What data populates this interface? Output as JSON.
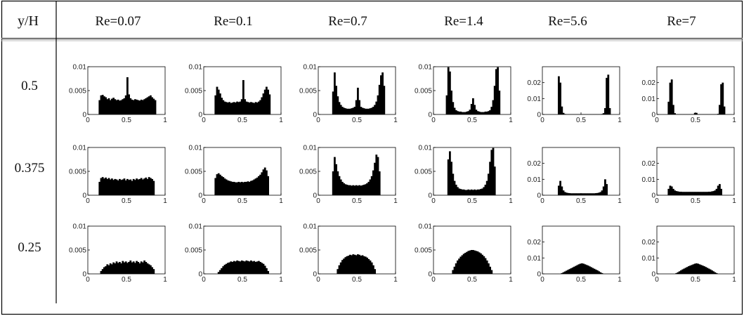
{
  "table": {
    "corner_label": "y/H",
    "columns": [
      "Re=0.07",
      "Re=0.1",
      "Re=0.7",
      "Re=1.4",
      "Re=5.6",
      "Re=7"
    ],
    "rows": [
      "0.5",
      "0.375",
      "0.25"
    ]
  },
  "chart_data": {
    "type": "bar",
    "description_of_grid": "3 rows (y/H) x 6 columns (Re) of histograms; x from 0 to 1",
    "x_ticks": [
      "0",
      "0.5",
      "1"
    ],
    "xlim": [
      0,
      1
    ],
    "y_ticks_small": [
      "0",
      "0.005",
      "0.01"
    ],
    "ylim_small": [
      0,
      0.01
    ],
    "y_ticks_large": [
      "0",
      "0.01",
      "0.02"
    ],
    "ylim_large": [
      0,
      0.03
    ],
    "bins": 50,
    "panels": [
      {
        "row": "0.5",
        "re": "Re=0.07",
        "scale": "small",
        "values": [
          0,
          0,
          0,
          0,
          0,
          0,
          0,
          0.003,
          0.004,
          0.0041,
          0.0038,
          0.0036,
          0.0032,
          0.0034,
          0.003,
          0.0033,
          0.0035,
          0.0032,
          0.003,
          0.0031,
          0.0029,
          0.003,
          0.0032,
          0.0034,
          0.004,
          0.0078,
          0.0042,
          0.0034,
          0.0031,
          0.003,
          0.0032,
          0.0031,
          0.003,
          0.0029,
          0.0031,
          0.003,
          0.0032,
          0.0034,
          0.0036,
          0.0038,
          0.004,
          0.0036,
          0.0033,
          0.003,
          0,
          0,
          0,
          0,
          0,
          0
        ]
      },
      {
        "row": "0.5",
        "re": "Re=0.1",
        "scale": "small",
        "values": [
          0,
          0,
          0,
          0,
          0,
          0,
          0,
          0.004,
          0.0058,
          0.0052,
          0.0044,
          0.0035,
          0.003,
          0.0027,
          0.0026,
          0.0025,
          0.0026,
          0.0024,
          0.0025,
          0.0026,
          0.0025,
          0.0027,
          0.0026,
          0.0027,
          0.0032,
          0.0072,
          0.0032,
          0.0027,
          0.0026,
          0.0025,
          0.0026,
          0.0025,
          0.0024,
          0.0026,
          0.0025,
          0.0027,
          0.003,
          0.0036,
          0.0044,
          0.0052,
          0.0058,
          0.0052,
          0.0042,
          0,
          0,
          0,
          0,
          0,
          0,
          0
        ]
      },
      {
        "row": "0.5",
        "re": "Re=0.7",
        "scale": "small",
        "values": [
          0,
          0,
          0,
          0,
          0,
          0,
          0,
          0,
          0,
          0.0048,
          0.0088,
          0.006,
          0.0038,
          0.0026,
          0.002,
          0.0016,
          0.0014,
          0.0013,
          0.0012,
          0.0012,
          0.0012,
          0.0013,
          0.0014,
          0.0016,
          0.003,
          0.0056,
          0.003,
          0.0016,
          0.0014,
          0.0013,
          0.0012,
          0.0012,
          0.0012,
          0.0013,
          0.0014,
          0.0016,
          0.002,
          0.0027,
          0.004,
          0.0062,
          0.0082,
          0.0088,
          0.006,
          0,
          0,
          0,
          0,
          0,
          0,
          0
        ]
      },
      {
        "row": "0.5",
        "re": "Re=1.4",
        "scale": "small",
        "values": [
          0,
          0,
          0,
          0,
          0,
          0,
          0,
          0,
          0.004,
          0.0099,
          0.009,
          0.005,
          0.0026,
          0.0014,
          0.0009,
          0.0007,
          0.0006,
          0.0006,
          0.0005,
          0.0005,
          0.0005,
          0.0006,
          0.0007,
          0.001,
          0.0022,
          0.0034,
          0.002,
          0.001,
          0.0007,
          0.0006,
          0.0005,
          0.0005,
          0.0005,
          0.0006,
          0.0006,
          0.0007,
          0.0009,
          0.0016,
          0.003,
          0.006,
          0.0095,
          0.0099,
          0.005,
          0,
          0,
          0,
          0,
          0,
          0,
          0
        ]
      },
      {
        "row": "0.5",
        "re": "Re=5.6",
        "scale": "large",
        "values": [
          0,
          0,
          0,
          0,
          0,
          0,
          0,
          0,
          0,
          0,
          0.024,
          0.02,
          0.005,
          0.001,
          0.0003,
          0.0002,
          0.0002,
          0.0002,
          0.0002,
          0.0002,
          0.0002,
          0.0002,
          0.0002,
          0.0002,
          0.0002,
          0.0002,
          0.0002,
          0.0002,
          0.0002,
          0.0002,
          0.0002,
          0.0002,
          0.0002,
          0.0002,
          0.0002,
          0.0002,
          0.0002,
          0.0002,
          0.0003,
          0.0008,
          0.004,
          0.023,
          0.025,
          0.004,
          0,
          0,
          0,
          0,
          0,
          0
        ]
      },
      {
        "row": "0.5",
        "re": "Re=7",
        "scale": "large",
        "values": [
          0,
          0,
          0,
          0,
          0,
          0,
          0,
          0.008,
          0.02,
          0.022,
          0.006,
          0.0008,
          0.0002,
          0.0002,
          0.0002,
          0.0002,
          0.0002,
          0.0002,
          0.0002,
          0.0002,
          0.0002,
          0.0002,
          0.0002,
          0.0002,
          0.001,
          0.001,
          0.0002,
          0.0002,
          0.0002,
          0.0002,
          0.0002,
          0.0002,
          0.0002,
          0.0002,
          0.0002,
          0.0002,
          0.0002,
          0.0002,
          0.0002,
          0.0004,
          0.006,
          0.019,
          0.02,
          0.005,
          0,
          0,
          0,
          0,
          0,
          0
        ]
      },
      {
        "row": "0.375",
        "re": "Re=0.07",
        "scale": "small",
        "values": [
          0,
          0,
          0,
          0,
          0,
          0,
          0,
          0.0028,
          0.0036,
          0.0038,
          0.0035,
          0.0037,
          0.0034,
          0.0036,
          0.0033,
          0.0035,
          0.0032,
          0.0034,
          0.0033,
          0.0031,
          0.0034,
          0.0032,
          0.0033,
          0.0035,
          0.0031,
          0.0034,
          0.0032,
          0.0033,
          0.003,
          0.0034,
          0.0032,
          0.0035,
          0.0033,
          0.0034,
          0.0036,
          0.0033,
          0.0035,
          0.0037,
          0.0034,
          0.0038,
          0.0036,
          0.0034,
          0.003,
          0,
          0,
          0,
          0,
          0,
          0,
          0
        ]
      },
      {
        "row": "0.375",
        "re": "Re=0.1",
        "scale": "small",
        "values": [
          0,
          0,
          0,
          0,
          0,
          0,
          0,
          0.0036,
          0.0044,
          0.0046,
          0.0043,
          0.004,
          0.0038,
          0.0035,
          0.0033,
          0.0031,
          0.003,
          0.0029,
          0.0028,
          0.0028,
          0.0027,
          0.0027,
          0.0028,
          0.0027,
          0.0028,
          0.0027,
          0.0028,
          0.0028,
          0.0029,
          0.0028,
          0.003,
          0.0031,
          0.0033,
          0.0035,
          0.0037,
          0.004,
          0.0043,
          0.0048,
          0.0054,
          0.0058,
          0.0052,
          0.004,
          0,
          0,
          0,
          0,
          0,
          0,
          0,
          0
        ]
      },
      {
        "row": "0.375",
        "re": "Re=0.7",
        "scale": "small",
        "values": [
          0,
          0,
          0,
          0,
          0,
          0,
          0,
          0,
          0,
          0.005,
          0.008,
          0.0065,
          0.005,
          0.004,
          0.0033,
          0.0028,
          0.0025,
          0.0023,
          0.0022,
          0.0021,
          0.0021,
          0.002,
          0.0021,
          0.002,
          0.0021,
          0.002,
          0.0021,
          0.002,
          0.0021,
          0.0022,
          0.0023,
          0.0025,
          0.0028,
          0.0033,
          0.004,
          0.0052,
          0.0068,
          0.0085,
          0.008,
          0.005,
          0,
          0,
          0,
          0,
          0,
          0,
          0,
          0,
          0,
          0
        ]
      },
      {
        "row": "0.375",
        "re": "Re=1.4",
        "scale": "small",
        "values": [
          0,
          0,
          0,
          0,
          0,
          0,
          0,
          0,
          0,
          0.0075,
          0.0092,
          0.007,
          0.0045,
          0.003,
          0.0022,
          0.0017,
          0.0014,
          0.0013,
          0.0012,
          0.0012,
          0.0011,
          0.0011,
          0.0012,
          0.0011,
          0.0012,
          0.0011,
          0.0012,
          0.0011,
          0.0012,
          0.0012,
          0.0013,
          0.0014,
          0.0017,
          0.0022,
          0.003,
          0.0045,
          0.007,
          0.0095,
          0.0099,
          0.006,
          0,
          0,
          0,
          0,
          0,
          0,
          0,
          0,
          0,
          0
        ]
      },
      {
        "row": "0.375",
        "re": "Re=5.6",
        "scale": "large",
        "values": [
          0,
          0,
          0,
          0,
          0,
          0,
          0,
          0,
          0,
          0,
          0.006,
          0.009,
          0.0055,
          0.003,
          0.002,
          0.0016,
          0.0014,
          0.0013,
          0.0012,
          0.0012,
          0.0012,
          0.0012,
          0.0012,
          0.0012,
          0.0012,
          0.0012,
          0.0012,
          0.0012,
          0.0012,
          0.0012,
          0.0012,
          0.0012,
          0.0012,
          0.0012,
          0.0013,
          0.0014,
          0.0016,
          0.002,
          0.003,
          0.0055,
          0.01,
          0.007,
          0,
          0,
          0,
          0,
          0,
          0,
          0,
          0
        ]
      },
      {
        "row": "0.375",
        "re": "Re=7",
        "scale": "large",
        "values": [
          0,
          0,
          0,
          0,
          0,
          0,
          0,
          0.004,
          0.006,
          0.0055,
          0.004,
          0.003,
          0.0026,
          0.0024,
          0.0022,
          0.0022,
          0.0021,
          0.0021,
          0.0021,
          0.0021,
          0.0021,
          0.0021,
          0.0021,
          0.0021,
          0.0021,
          0.0021,
          0.0021,
          0.0021,
          0.0021,
          0.0021,
          0.0021,
          0.0021,
          0.0021,
          0.0022,
          0.0022,
          0.0024,
          0.0026,
          0.003,
          0.004,
          0.006,
          0.007,
          0.004,
          0,
          0,
          0,
          0,
          0,
          0,
          0,
          0
        ]
      },
      {
        "row": "0.25",
        "re": "Re=0.07",
        "scale": "small",
        "values": [
          0,
          0,
          0,
          0,
          0,
          0,
          0,
          0,
          0.0006,
          0.001,
          0.0014,
          0.0016,
          0.002,
          0.0018,
          0.0022,
          0.002,
          0.0024,
          0.0022,
          0.0026,
          0.0023,
          0.0025,
          0.0022,
          0.0027,
          0.0024,
          0.0026,
          0.0023,
          0.0025,
          0.0028,
          0.0024,
          0.0026,
          0.0023,
          0.0027,
          0.0025,
          0.0022,
          0.0026,
          0.0024,
          0.0028,
          0.0025,
          0.0022,
          0.002,
          0.0018,
          0.0014,
          0.001,
          0,
          0,
          0,
          0,
          0,
          0,
          0
        ]
      },
      {
        "row": "0.25",
        "re": "Re=0.1",
        "scale": "small",
        "values": [
          0,
          0,
          0,
          0,
          0,
          0,
          0,
          0,
          0,
          0.0004,
          0.0008,
          0.0012,
          0.0016,
          0.0019,
          0.0021,
          0.0023,
          0.0024,
          0.0026,
          0.0025,
          0.0027,
          0.0026,
          0.0028,
          0.0027,
          0.0026,
          0.0028,
          0.0027,
          0.0026,
          0.0028,
          0.0027,
          0.0026,
          0.0028,
          0.0026,
          0.0027,
          0.0025,
          0.0026,
          0.0027,
          0.0025,
          0.0023,
          0.0021,
          0.0017,
          0.0012,
          0.0006,
          0,
          0,
          0,
          0,
          0,
          0,
          0,
          0
        ]
      },
      {
        "row": "0.25",
        "re": "Re=0.7",
        "scale": "small",
        "values": [
          0,
          0,
          0,
          0,
          0,
          0,
          0,
          0,
          0,
          0,
          0,
          0,
          0.001,
          0.0018,
          0.0024,
          0.0029,
          0.0032,
          0.0035,
          0.0037,
          0.0038,
          0.004,
          0.0039,
          0.0041,
          0.004,
          0.0039,
          0.0041,
          0.004,
          0.0038,
          0.0039,
          0.0037,
          0.0036,
          0.0034,
          0.0031,
          0.0028,
          0.0024,
          0.0018,
          0.001,
          0,
          0,
          0,
          0,
          0,
          0,
          0,
          0,
          0,
          0,
          0,
          0,
          0
        ]
      },
      {
        "row": "0.25",
        "re": "Re=1.4",
        "scale": "small",
        "values": [
          0,
          0,
          0,
          0,
          0,
          0,
          0,
          0,
          0,
          0,
          0,
          0,
          0.0008,
          0.0015,
          0.0022,
          0.0028,
          0.0032,
          0.0036,
          0.0039,
          0.0042,
          0.0044,
          0.0046,
          0.0048,
          0.0049,
          0.005,
          0.005,
          0.0049,
          0.0048,
          0.0047,
          0.0045,
          0.0043,
          0.004,
          0.0037,
          0.0033,
          0.0028,
          0.0022,
          0.0015,
          0.0008,
          0,
          0,
          0,
          0,
          0,
          0,
          0,
          0,
          0,
          0,
          0,
          0
        ]
      },
      {
        "row": "0.25",
        "re": "Re=5.6",
        "scale": "large",
        "values": [
          0,
          0,
          0,
          0,
          0,
          0,
          0,
          0,
          0,
          0,
          0,
          0,
          0.0005,
          0.001,
          0.0015,
          0.002,
          0.0025,
          0.003,
          0.0035,
          0.004,
          0.0045,
          0.005,
          0.0055,
          0.006,
          0.0064,
          0.0066,
          0.0064,
          0.006,
          0.0056,
          0.0052,
          0.0047,
          0.0042,
          0.0037,
          0.0032,
          0.0027,
          0.0022,
          0.0016,
          0.001,
          0.0005,
          0,
          0,
          0,
          0,
          0,
          0,
          0,
          0,
          0,
          0,
          0
        ]
      },
      {
        "row": "0.25",
        "re": "Re=7",
        "scale": "large",
        "values": [
          0,
          0,
          0,
          0,
          0,
          0,
          0,
          0,
          0,
          0,
          0,
          0,
          0.0005,
          0.001,
          0.0016,
          0.0022,
          0.0028,
          0.0033,
          0.0038,
          0.0043,
          0.0048,
          0.0052,
          0.0056,
          0.006,
          0.0064,
          0.0066,
          0.0064,
          0.006,
          0.0056,
          0.0052,
          0.0048,
          0.0043,
          0.0038,
          0.0033,
          0.0028,
          0.0022,
          0.0016,
          0.001,
          0.0005,
          0,
          0,
          0,
          0,
          0,
          0,
          0,
          0,
          0,
          0,
          0
        ]
      }
    ]
  }
}
